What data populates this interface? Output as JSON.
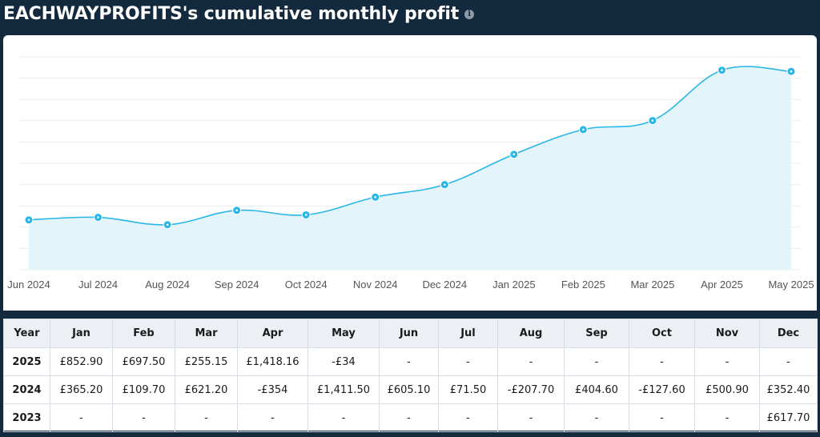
{
  "header": {
    "title": "EACHWAYPROFITS's cumulative monthly profit",
    "info_icon": "info-icon"
  },
  "chart_data": {
    "type": "area",
    "x": [
      "Jun 2024",
      "Jul 2024",
      "Aug 2024",
      "Sep 2024",
      "Oct 2024",
      "Nov 2024",
      "Dec 2024",
      "Jan 2025",
      "Feb 2025",
      "Mar 2025",
      "Apr 2025",
      "May 2025"
    ],
    "series": [
      {
        "values": [
          605.1,
          676.6,
          468.9,
          873.5,
          745.9,
          1246.8,
          1599.2,
          2452.1,
          3149.6,
          3404.75,
          4822.91,
          4788.91
        ]
      }
    ],
    "ylim": [
      -800,
      5200
    ],
    "grid": true,
    "line_color": "#29b6e8",
    "fill_color": "#e3f4fb"
  },
  "table": {
    "headers": [
      "Year",
      "Jan",
      "Feb",
      "Mar",
      "Apr",
      "May",
      "Jun",
      "Jul",
      "Aug",
      "Sep",
      "Oct",
      "Nov",
      "Dec"
    ],
    "rows": [
      {
        "year": "2025",
        "cells": [
          "£852.90",
          "£697.50",
          "£255.15",
          "£1,418.16",
          "-£34",
          "-",
          "-",
          "-",
          "-",
          "-",
          "-",
          "-"
        ]
      },
      {
        "year": "2024",
        "cells": [
          "£365.20",
          "£109.70",
          "£621.20",
          "-£354",
          "£1,411.50",
          "£605.10",
          "£71.50",
          "-£207.70",
          "£404.60",
          "-£127.60",
          "£500.90",
          "£352.40"
        ]
      },
      {
        "year": "2023",
        "cells": [
          "-",
          "-",
          "-",
          "-",
          "-",
          "-",
          "-",
          "-",
          "-",
          "-",
          "-",
          "£617.70"
        ]
      }
    ]
  }
}
